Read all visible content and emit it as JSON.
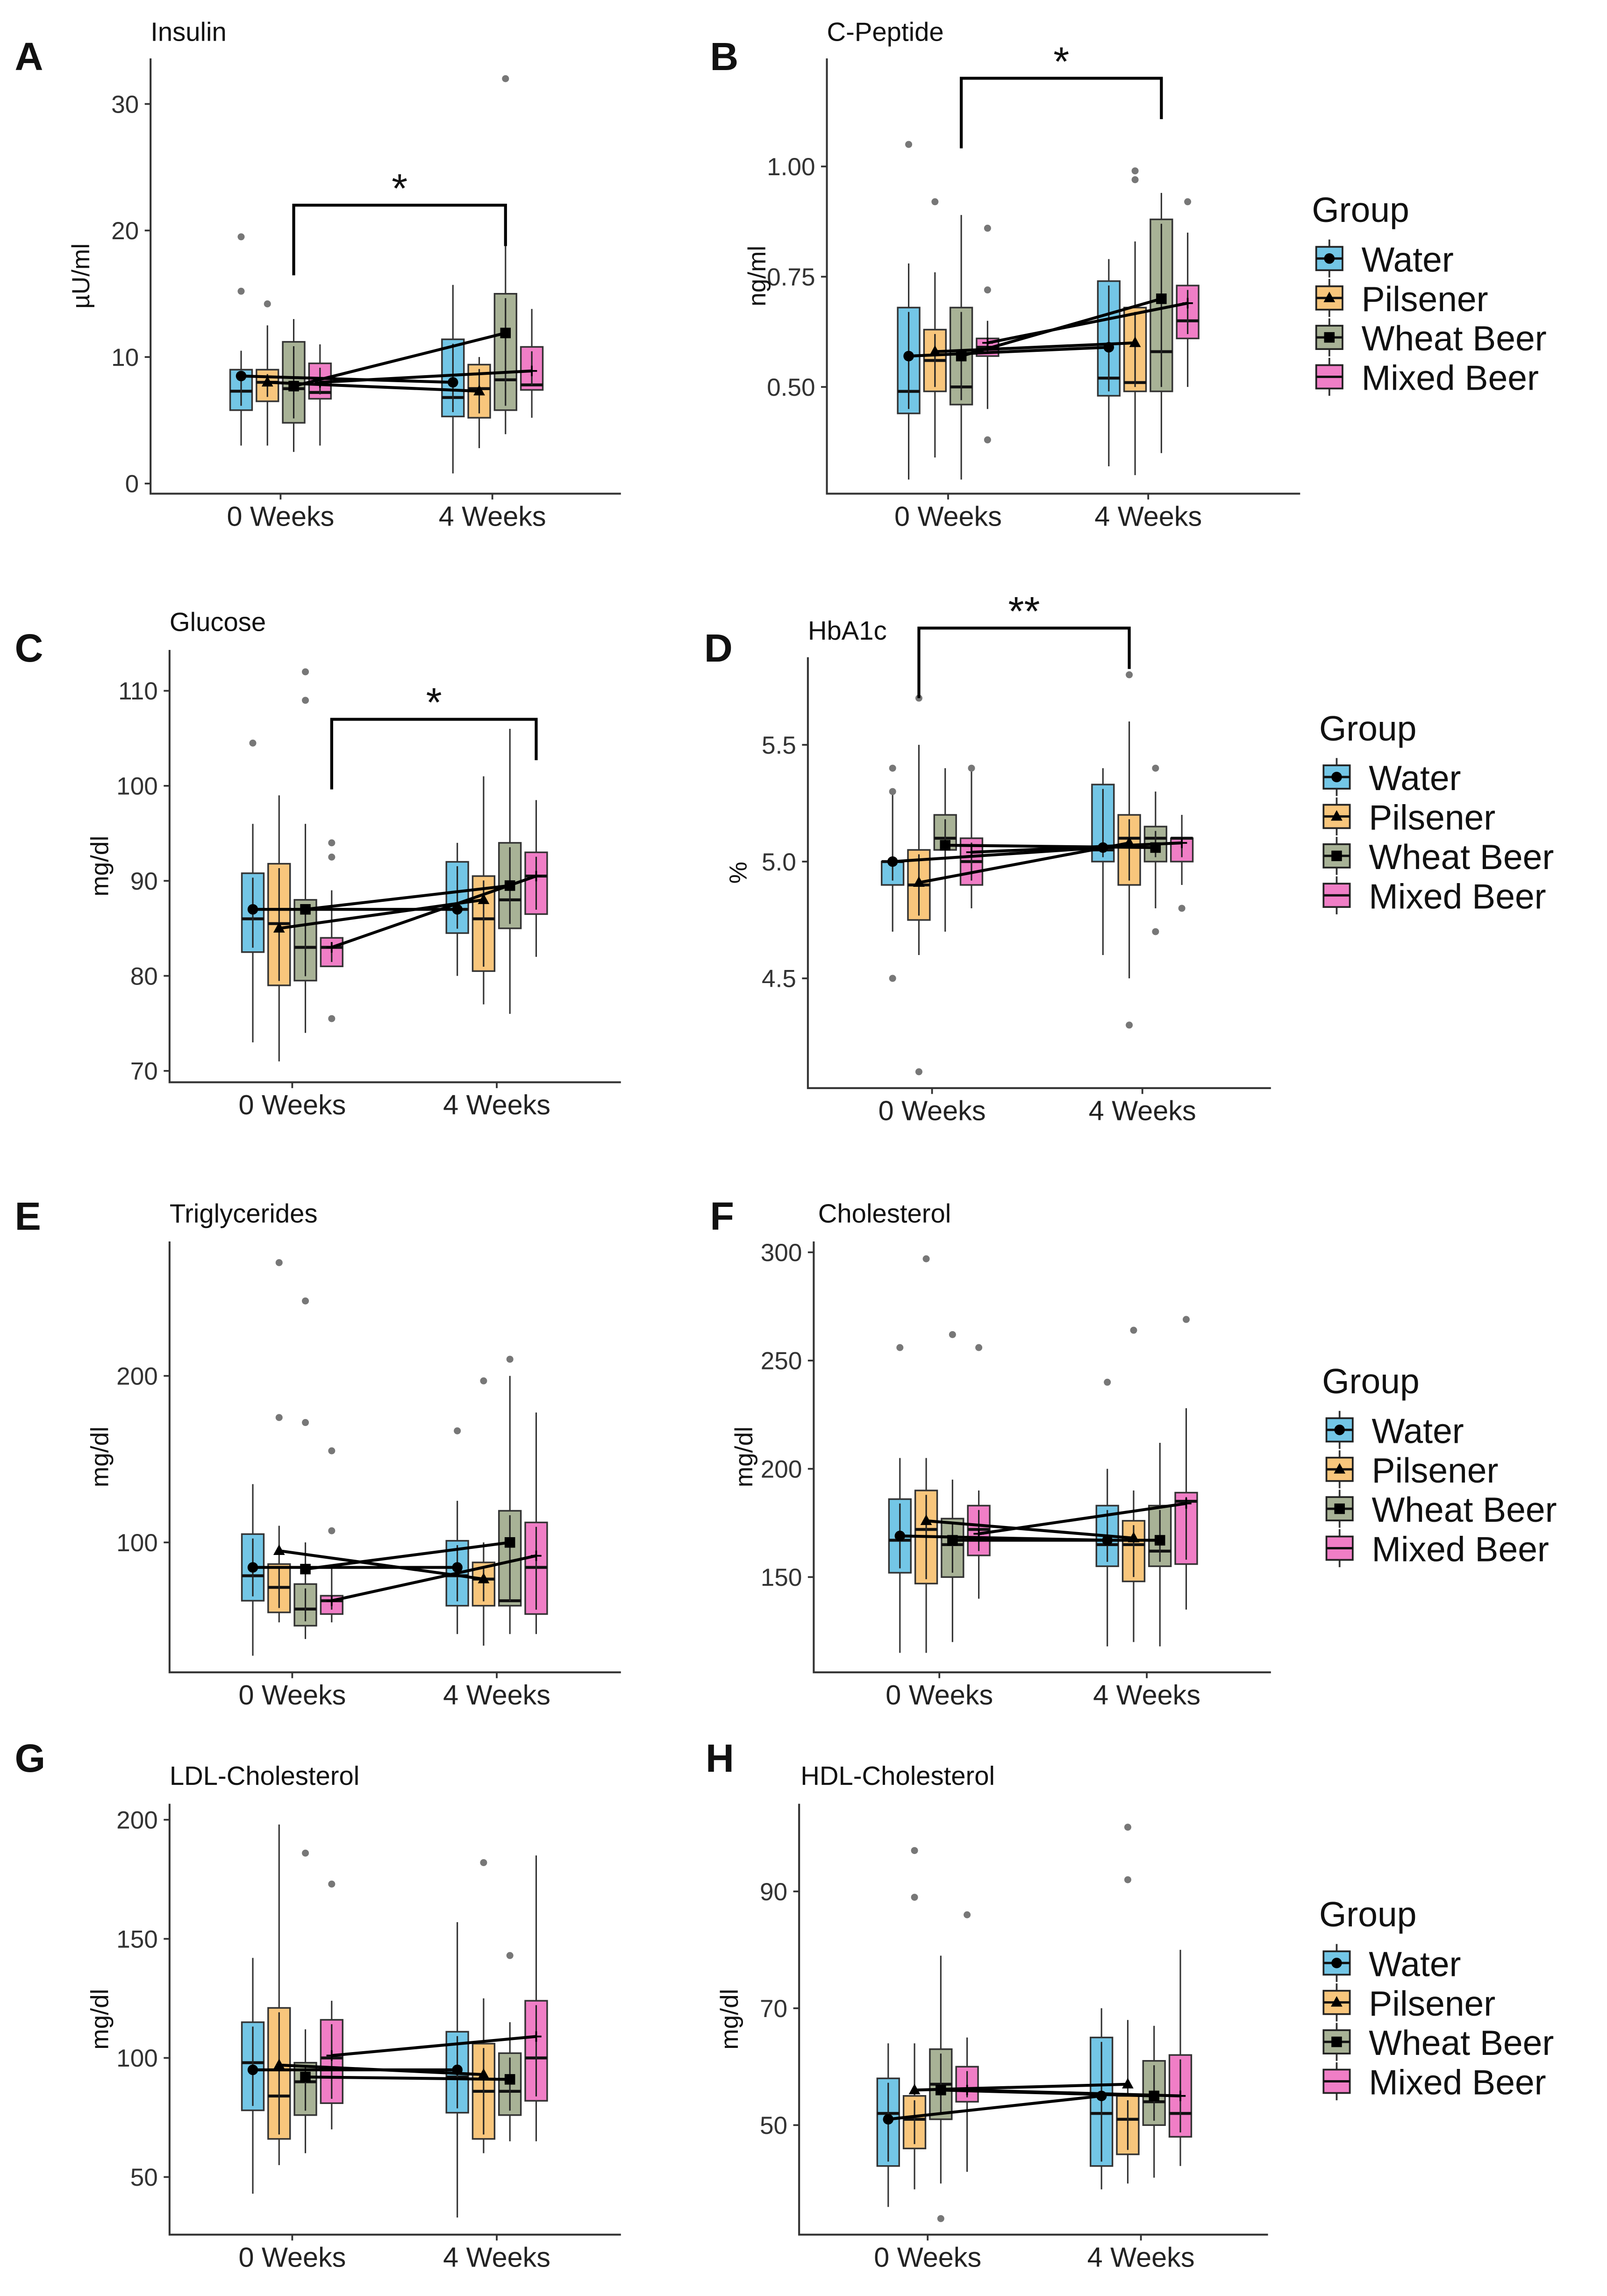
{
  "figure": {
    "legend_title": "Group",
    "timepoints": [
      "0 Weeks",
      "4 Weeks"
    ],
    "groups": [
      {
        "name": "Water",
        "color": "#73C6E6",
        "marker": "circle"
      },
      {
        "name": "Pilsener",
        "color": "#F8C67C",
        "marker": "triangle"
      },
      {
        "name": "Wheat Beer",
        "color": "#A8B296",
        "marker": "square"
      },
      {
        "name": "Mixed Beer",
        "color": "#F07EC6",
        "marker": "plus"
      }
    ],
    "stats_order": [
      "min",
      "q1",
      "median",
      "q3",
      "max",
      "mean",
      "outliers"
    ]
  },
  "chart_data": [
    {
      "panel": "A",
      "type": "box",
      "title": "Insulin",
      "ylabel": "µU/ml",
      "ylim": [
        -0.8,
        33.6
      ],
      "yticks": [
        0,
        10,
        20,
        30
      ],
      "ytick_labels": [
        "0",
        "10",
        "20",
        "30"
      ],
      "boxes": [
        [
          [
            3,
            5.8,
            7.3,
            9.0,
            10.5,
            8.5,
            [
              15.2,
              19.5
            ]
          ],
          [
            0.8,
            5.3,
            6.8,
            11.4,
            15.7,
            8.0,
            []
          ]
        ],
        [
          [
            3,
            6.5,
            8.0,
            9.0,
            12.5,
            8.0,
            [
              14.2
            ]
          ],
          [
            2.8,
            5.2,
            7.5,
            9.4,
            10.0,
            7.3,
            []
          ]
        ],
        [
          [
            2.5,
            4.8,
            7.5,
            11.2,
            13.0,
            7.7,
            []
          ],
          [
            3.9,
            5.8,
            8.2,
            15.0,
            19.3,
            11.9,
            [
              32
            ]
          ]
        ],
        [
          [
            3,
            6.7,
            7.2,
            9.5,
            11.0,
            8.0,
            []
          ],
          [
            5.2,
            7.4,
            7.8,
            10.8,
            13.8,
            8.9,
            []
          ]
        ]
      ],
      "significance": {
        "group": 2,
        "y": 22,
        "label": "*"
      }
    },
    {
      "panel": "B",
      "type": "box",
      "title": "C-Peptide",
      "ylabel": "ng/ml",
      "ylim": [
        0.258,
        1.245
      ],
      "yticks": [
        0.5,
        0.75,
        1.0
      ],
      "ytick_labels": [
        "0.50",
        "0.75",
        "1.00"
      ],
      "boxes": [
        [
          [
            0.29,
            0.44,
            0.49,
            0.68,
            0.78,
            0.57,
            [
              1.05
            ]
          ],
          [
            0.32,
            0.48,
            0.52,
            0.74,
            0.79,
            0.59,
            []
          ]
        ],
        [
          [
            0.34,
            0.49,
            0.56,
            0.63,
            0.76,
            0.58,
            [
              0.92
            ]
          ],
          [
            0.3,
            0.49,
            0.51,
            0.68,
            0.83,
            0.6,
            [
              0.99,
              0.97
            ]
          ]
        ],
        [
          [
            0.29,
            0.46,
            0.5,
            0.68,
            0.89,
            0.57,
            []
          ],
          [
            0.35,
            0.49,
            0.58,
            0.88,
            0.94,
            0.7,
            []
          ]
        ],
        [
          [
            0.45,
            0.57,
            0.59,
            0.61,
            0.65,
            0.6,
            [
              0.86,
              0.72,
              0.38
            ]
          ],
          [
            0.5,
            0.61,
            0.65,
            0.73,
            0.85,
            0.69,
            [
              0.92
            ]
          ]
        ]
      ],
      "significance": {
        "group": 2,
        "y": 1.2,
        "label": "*"
      }
    },
    {
      "panel": "C",
      "type": "box",
      "title": "Glucose",
      "ylabel": "mg/dl",
      "ylim": [
        68.8,
        114.3
      ],
      "yticks": [
        70,
        80,
        90,
        100,
        110
      ],
      "ytick_labels": [
        "70",
        "80",
        "90",
        "100",
        "110"
      ],
      "boxes": [
        [
          [
            73,
            82.5,
            86,
            90.8,
            96,
            87,
            [
              104.5
            ]
          ],
          [
            80,
            84.5,
            87,
            92,
            94,
            87,
            []
          ]
        ],
        [
          [
            71,
            79,
            85.5,
            91.8,
            99,
            85,
            []
          ],
          [
            77,
            80.5,
            86,
            90.5,
            101,
            88,
            []
          ]
        ],
        [
          [
            74,
            79.5,
            83,
            88,
            96,
            87,
            [
              109,
              112
            ]
          ],
          [
            76,
            85,
            88,
            94,
            106,
            89.5,
            []
          ]
        ],
        [
          [
            81,
            81,
            83,
            84,
            89,
            83,
            [
              94,
              92.5,
              75.5
            ]
          ],
          [
            82,
            86.5,
            90.5,
            93,
            98.5,
            90.5,
            []
          ]
        ]
      ],
      "significance": {
        "group": 3,
        "y": 107,
        "label": "*"
      }
    },
    {
      "panel": "D",
      "type": "box",
      "title": "HbA1c",
      "ylabel": "%",
      "ylim": [
        4.03,
        5.875
      ],
      "yticks": [
        4.5,
        5.0,
        5.5
      ],
      "ytick_labels": [
        "4.5",
        "5.0",
        "5.5"
      ],
      "boxes": [
        [
          [
            4.7,
            4.9,
            5.0,
            5.0,
            5.3,
            5.0,
            [
              5.4,
              5.3,
              4.5
            ]
          ],
          [
            4.6,
            5.0,
            5.05,
            5.33,
            5.4,
            5.06,
            []
          ]
        ],
        [
          [
            4.6,
            4.75,
            4.9,
            5.05,
            5.5,
            4.91,
            [
              4.1,
              5.7
            ]
          ],
          [
            4.5,
            4.9,
            5.1,
            5.2,
            5.6,
            5.08,
            [
              5.8,
              4.3
            ]
          ]
        ],
        [
          [
            4.7,
            5.05,
            5.1,
            5.2,
            5.4,
            5.07,
            []
          ],
          [
            4.8,
            5.0,
            5.1,
            5.15,
            5.3,
            5.06,
            [
              4.7,
              5.4
            ]
          ]
        ],
        [
          [
            4.8,
            4.9,
            5.0,
            5.1,
            5.4,
            5.04,
            [
              5.4
            ]
          ],
          [
            4.9,
            5.0,
            5.1,
            5.1,
            5.2,
            5.08,
            [
              4.8
            ]
          ]
        ]
      ],
      "significance": {
        "group": 1,
        "y": 6.0,
        "label": "**"
      }
    },
    {
      "panel": "E",
      "type": "box",
      "title": "Triglycerides",
      "ylabel": "mg/dl",
      "ylim": [
        22,
        280.7
      ],
      "yticks": [
        100,
        200
      ],
      "ytick_labels": [
        "100",
        "200"
      ],
      "boxes": [
        [
          [
            32,
            65,
            80,
            105,
            135,
            85,
            []
          ],
          [
            45,
            62,
            80,
            101,
            125,
            85,
            [
              167
            ]
          ]
        ],
        [
          [
            52,
            58,
            73,
            87,
            110,
            95,
            [
              175,
              268
            ]
          ],
          [
            38,
            62,
            78,
            88,
            100,
            78,
            [
              197
            ]
          ]
        ],
        [
          [
            42,
            50,
            60,
            75,
            100,
            84,
            [
              245,
              172
            ]
          ],
          [
            45,
            62,
            65,
            119,
            200,
            100,
            [
              210
            ]
          ]
        ],
        [
          [
            52,
            57,
            65,
            68,
            85,
            65,
            [
              155,
              107
            ]
          ],
          [
            45,
            57,
            85,
            112,
            178,
            92,
            []
          ]
        ]
      ],
      "significance": null
    },
    {
      "panel": "F",
      "type": "box",
      "title": "Cholesterol",
      "ylabel": "mg/dl",
      "ylim": [
        106,
        305
      ],
      "yticks": [
        150,
        200,
        250,
        300
      ],
      "ytick_labels": [
        "150",
        "200",
        "250",
        "300"
      ],
      "boxes": [
        [
          [
            115,
            152,
            167,
            186,
            205,
            169,
            [
              256
            ]
          ],
          [
            118,
            155,
            165,
            183,
            200,
            167,
            [
              240
            ]
          ]
        ],
        [
          [
            115,
            147,
            172,
            190,
            205,
            176,
            [
              297
            ]
          ],
          [
            120,
            148,
            165,
            176,
            190,
            168,
            [
              264
            ]
          ]
        ],
        [
          [
            120,
            150,
            165,
            177,
            195,
            167,
            [
              262
            ]
          ],
          [
            118,
            155,
            162,
            183,
            212,
            167,
            []
          ]
        ],
        [
          [
            140,
            160,
            172,
            183,
            190,
            170,
            [
              256
            ]
          ],
          [
            135,
            156,
            185,
            189,
            228,
            184,
            [
              269
            ]
          ]
        ]
      ],
      "significance": null
    },
    {
      "panel": "G",
      "type": "box",
      "title": "LDL-Cholesterol",
      "ylabel": "mg/dl",
      "ylim": [
        25.8,
        206.7
      ],
      "yticks": [
        50,
        100,
        150,
        200
      ],
      "ytick_labels": [
        "50",
        "100",
        "150",
        "200"
      ],
      "boxes": [
        [
          [
            43,
            78,
            98,
            115,
            142,
            95,
            []
          ],
          [
            33,
            77,
            92,
            111,
            157,
            95,
            []
          ]
        ],
        [
          [
            55,
            66,
            84,
            121,
            198,
            97,
            []
          ],
          [
            60,
            66,
            86,
            106,
            125,
            93,
            [
              182
            ]
          ]
        ],
        [
          [
            60,
            76,
            90,
            98,
            112,
            92,
            [
              186
            ]
          ],
          [
            65,
            76,
            86,
            102,
            115,
            91,
            [
              143
            ]
          ]
        ],
        [
          [
            70,
            81,
            100,
            116,
            124,
            101,
            [
              173
            ]
          ],
          [
            65,
            82,
            100,
            124,
            185,
            109,
            []
          ]
        ]
      ],
      "significance": null
    },
    {
      "panel": "H",
      "type": "box",
      "title": "HDL-Cholesterol",
      "ylabel": "mg/dl",
      "ylim": [
        31.25,
        105
      ],
      "yticks": [
        50,
        70,
        90
      ],
      "ytick_labels": [
        "50",
        "70",
        "90"
      ],
      "boxes": [
        [
          [
            36,
            43,
            52,
            58,
            64,
            51,
            []
          ],
          [
            39,
            43,
            52,
            65,
            70,
            55,
            []
          ]
        ],
        [
          [
            39,
            46,
            51,
            55,
            64,
            56,
            [
              97,
              89
            ]
          ],
          [
            40,
            45,
            51,
            55,
            68,
            57,
            [
              101,
              92
            ]
          ]
        ],
        [
          [
            40,
            51,
            57,
            63,
            79,
            56,
            [
              34
            ]
          ],
          [
            41,
            50,
            54,
            61,
            67,
            55,
            []
          ]
        ],
        [
          [
            42,
            54,
            56,
            60,
            65,
            56,
            [
              86
            ]
          ],
          [
            43,
            48,
            52,
            62,
            80,
            55,
            []
          ]
        ]
      ],
      "significance": null
    }
  ]
}
